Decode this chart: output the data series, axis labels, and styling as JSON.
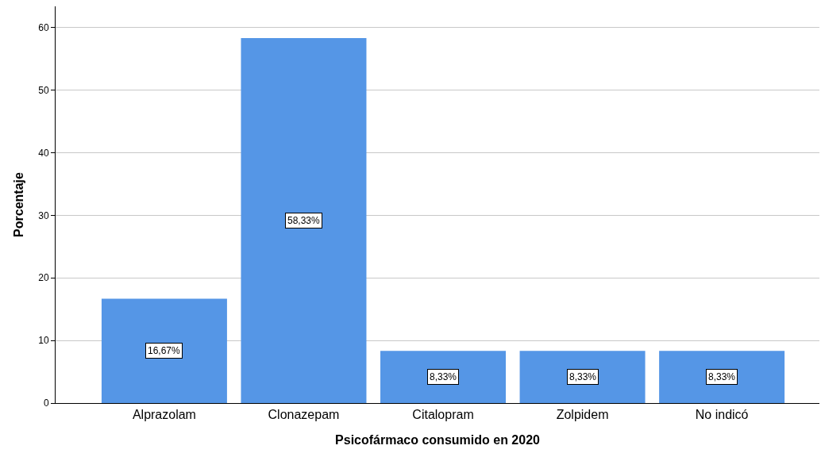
{
  "chart_data": {
    "type": "bar",
    "xlabel": "Psicofármaco consumido en 2020",
    "ylabel": "Porcentaje",
    "categories": [
      "Alprazolam",
      "Clonazepam",
      "Citalopram",
      "Zolpidem",
      "No indicó"
    ],
    "values": [
      16.67,
      58.33,
      8.33,
      8.33,
      8.33
    ],
    "value_labels": [
      "16,67%",
      "58,33%",
      "8,33%",
      "8,33%",
      "8,33%"
    ],
    "color": "#5596e6",
    "ylim": [
      0,
      63.4
    ],
    "yticks": [
      0,
      10,
      20,
      30,
      40,
      50,
      60
    ],
    "grid": "y"
  }
}
